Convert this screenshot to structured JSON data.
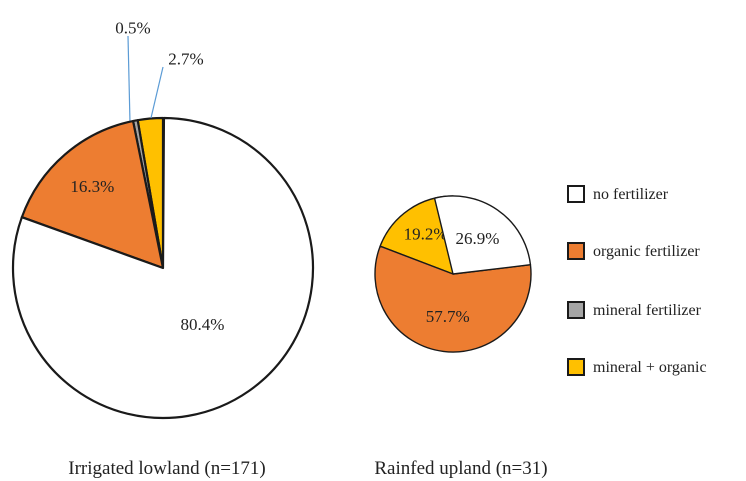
{
  "chart_data": [
    {
      "type": "pie",
      "title": "Irrigated lowland (n=171)",
      "slices": [
        {
          "name": "no fertilizer",
          "value": 80.4,
          "label": "80.4%"
        },
        {
          "name": "organic fertilizer",
          "value": 16.3,
          "label": "16.3%"
        },
        {
          "name": "mineral fertilizer",
          "value": 0.5,
          "label": "0.5%"
        },
        {
          "name": "mineral + organic",
          "value": 2.7,
          "label": "2.7%"
        }
      ]
    },
    {
      "type": "pie",
      "title": "Rainfed upland (n=31)",
      "slices": [
        {
          "name": "no fertilizer",
          "value": 26.9,
          "label": "26.9%"
        },
        {
          "name": "organic fertilizer",
          "value": 57.7,
          "label": "57.7%"
        },
        {
          "name": "mineral fertilizer",
          "value": 0,
          "label": ""
        },
        {
          "name": "mineral + organic",
          "value": 19.2,
          "label": "19.2%"
        }
      ]
    }
  ],
  "legend": {
    "placement": "right",
    "items": [
      {
        "label": "no fertilizer",
        "color": "#ffffff"
      },
      {
        "label": "organic fertilizer",
        "color": "#ed7d31"
      },
      {
        "label": "mineral fertilizer",
        "color": "#a5a5a5"
      },
      {
        "label": "mineral + organic",
        "color": "#ffc000"
      }
    ]
  },
  "colors": {
    "outline": "#1a1a1a",
    "leader_line": "#5b9bd5"
  }
}
